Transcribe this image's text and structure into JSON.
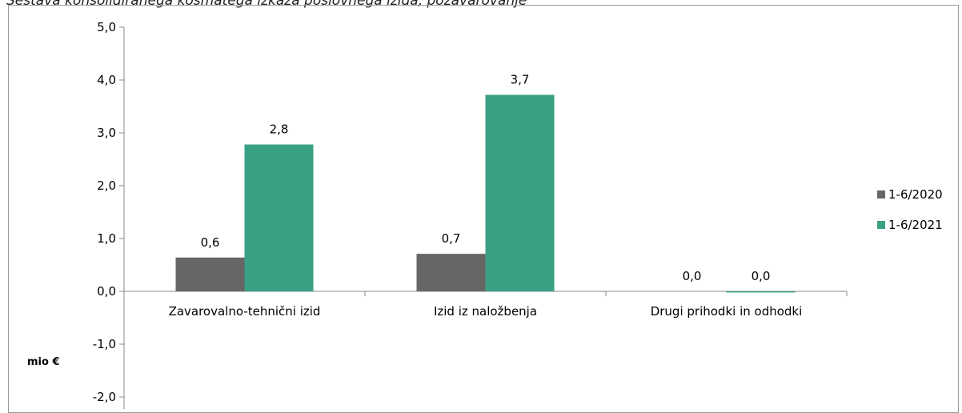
{
  "chart_data": {
    "type": "bar",
    "title": "Sestava konsolidiranega kosmatega izkaza poslovnega izida, pozavarovanje",
    "ylabel": "mio €",
    "xlabel": "",
    "ylim": [
      -2.0,
      5.0
    ],
    "ytick_step": 1.0,
    "yticks": [
      "5,0",
      "4,0",
      "3,0",
      "2,0",
      "1,0",
      "0,0",
      "-1,0",
      "-2,0"
    ],
    "categories": [
      "Zavarovalno-tehnični izid",
      "Izid iz naložbenja",
      "Drugi prihodki in odhodki"
    ],
    "series": [
      {
        "name": "1-6/2020",
        "color": "#666666",
        "values": [
          0.64,
          0.71,
          0.0
        ],
        "labels": [
          "0,6",
          "0,7",
          "0,0"
        ]
      },
      {
        "name": "1-6/2021",
        "color": "#3aa084",
        "values": [
          2.78,
          3.72,
          -0.02
        ],
        "labels": [
          "2,8",
          "3,7",
          "0,0"
        ]
      }
    ],
    "legend": "right",
    "grid": false
  }
}
